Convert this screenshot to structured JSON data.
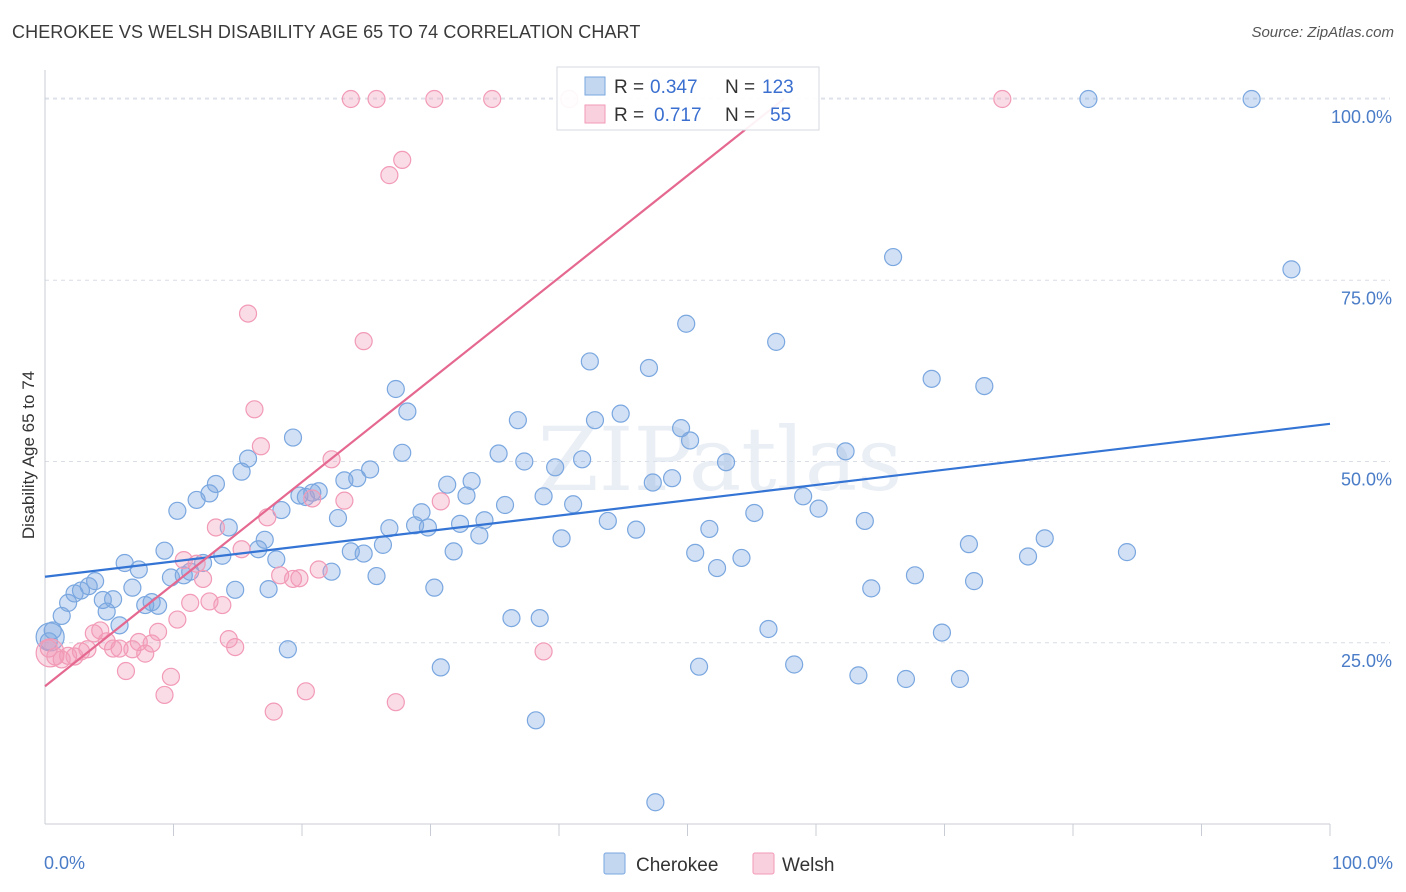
{
  "title": "CHEROKEE VS WELSH DISABILITY AGE 65 TO 74 CORRELATION CHART",
  "source": "Source: ZipAtlas.com",
  "watermark": "ZIPatlas",
  "chart_data": {
    "type": "scatter",
    "ylabel": "Disability Age 65 to 74",
    "xlabel": "",
    "xlim": [
      0,
      100
    ],
    "ylim": [
      0,
      104
    ],
    "x_tick_labels": [
      "0.0%",
      "100.0%"
    ],
    "y_ticks": [
      25,
      50,
      75,
      100
    ],
    "y_tick_labels": [
      "25.0%",
      "50.0%",
      "75.0%",
      "100.0%"
    ],
    "grid": true,
    "legend_position": "top-center",
    "stats": [
      {
        "r_label": "R =",
        "r_value": "0.347",
        "n_label": "N =",
        "n_value": "123"
      },
      {
        "r_label": "R =",
        "r_value": "0.717",
        "n_label": "N =",
        "n_value": "55"
      }
    ],
    "series": [
      {
        "name": "Cherokee",
        "color": "#7aa7e0",
        "line_color": "#3474d4",
        "trend": [
          [
            0,
            34.1
          ],
          [
            100,
            55.2
          ]
        ],
        "points": [
          [
            0.3,
            25.2
          ],
          [
            0.6,
            26.7
          ],
          [
            1.3,
            28.7
          ],
          [
            1.8,
            30.5
          ],
          [
            2.3,
            31.8
          ],
          [
            2.8,
            32.2
          ],
          [
            3.4,
            32.8
          ],
          [
            3.9,
            33.5
          ],
          [
            4.5,
            30.9
          ],
          [
            4.8,
            29.3
          ],
          [
            5.3,
            31
          ],
          [
            5.8,
            27.4
          ],
          [
            6.2,
            36
          ],
          [
            6.8,
            32.6
          ],
          [
            7.3,
            35.1
          ],
          [
            7.8,
            30.2
          ],
          [
            8.3,
            30.6
          ],
          [
            8.8,
            30.1
          ],
          [
            9.3,
            37.7
          ],
          [
            9.8,
            34
          ],
          [
            10.3,
            43.2
          ],
          [
            10.8,
            34.3
          ],
          [
            11.3,
            34.8
          ],
          [
            11.8,
            44.7
          ],
          [
            12.3,
            36
          ],
          [
            12.8,
            45.6
          ],
          [
            13.3,
            46.9
          ],
          [
            13.8,
            37
          ],
          [
            14.3,
            40.9
          ],
          [
            14.8,
            32.3
          ],
          [
            15.3,
            48.6
          ],
          [
            15.8,
            50.4
          ],
          [
            16.6,
            37.9
          ],
          [
            17.1,
            39.2
          ],
          [
            17.4,
            32.4
          ],
          [
            18,
            36.5
          ],
          [
            18.4,
            43.3
          ],
          [
            18.9,
            24.1
          ],
          [
            19.3,
            53.3
          ],
          [
            19.8,
            45.3
          ],
          [
            20.3,
            45.1
          ],
          [
            20.8,
            45.7
          ],
          [
            21.3,
            45.9
          ],
          [
            22.3,
            34.8
          ],
          [
            22.8,
            42.2
          ],
          [
            23.3,
            47.4
          ],
          [
            23.8,
            37.6
          ],
          [
            24.3,
            47.7
          ],
          [
            24.8,
            37.3
          ],
          [
            25.3,
            48.9
          ],
          [
            25.8,
            34.2
          ],
          [
            26.3,
            38.5
          ],
          [
            26.8,
            40.8
          ],
          [
            27.3,
            60
          ],
          [
            27.8,
            51.2
          ],
          [
            28.2,
            56.9
          ],
          [
            28.8,
            41.2
          ],
          [
            29.3,
            43
          ],
          [
            29.8,
            40.9
          ],
          [
            30.3,
            32.6
          ],
          [
            30.8,
            21.6
          ],
          [
            31.3,
            46.8
          ],
          [
            31.8,
            37.6
          ],
          [
            32.3,
            41.4
          ],
          [
            32.8,
            45.3
          ],
          [
            33.2,
            47.3
          ],
          [
            33.8,
            39.8
          ],
          [
            34.2,
            41.9
          ],
          [
            35.3,
            51.1
          ],
          [
            35.8,
            44
          ],
          [
            36.3,
            28.4
          ],
          [
            36.8,
            55.7
          ],
          [
            37.3,
            50
          ],
          [
            38.2,
            14.3
          ],
          [
            38.5,
            28.4
          ],
          [
            38.8,
            45.2
          ],
          [
            39.7,
            49.2
          ],
          [
            40.2,
            39.4
          ],
          [
            41.1,
            44.1
          ],
          [
            41.8,
            50.3
          ],
          [
            42.4,
            63.8
          ],
          [
            42.8,
            55.7
          ],
          [
            43.8,
            41.8
          ],
          [
            44.8,
            56.6
          ],
          [
            46,
            40.6
          ],
          [
            47,
            62.9
          ],
          [
            47.3,
            47.1
          ],
          [
            48.8,
            47.7
          ],
          [
            49.5,
            54.6
          ],
          [
            49.9,
            69
          ],
          [
            50.2,
            52.9
          ],
          [
            50.6,
            37.4
          ],
          [
            50.9,
            21.7
          ],
          [
            51.7,
            40.7
          ],
          [
            52.3,
            35.3
          ],
          [
            53,
            49.9
          ],
          [
            54.2,
            36.7
          ],
          [
            55.2,
            42.9
          ],
          [
            56.3,
            26.9
          ],
          [
            56.9,
            66.5
          ],
          [
            58.3,
            22
          ],
          [
            59,
            45.2
          ],
          [
            60.2,
            43.5
          ],
          [
            62.3,
            51.4
          ],
          [
            63.3,
            20.5
          ],
          [
            63.8,
            41.8
          ],
          [
            64.3,
            32.5
          ],
          [
            66,
            78.2
          ],
          [
            67,
            20
          ],
          [
            67.7,
            34.3
          ],
          [
            69,
            61.4
          ],
          [
            69.8,
            26.4
          ],
          [
            71.2,
            20
          ],
          [
            71.9,
            38.6
          ],
          [
            72.3,
            33.5
          ],
          [
            73.1,
            60.4
          ],
          [
            76.5,
            36.9
          ],
          [
            77.8,
            39.4
          ],
          [
            81.2,
            100
          ],
          [
            84.2,
            37.5
          ],
          [
            93.9,
            100
          ],
          [
            97,
            76.5
          ],
          [
            47.5,
            3
          ]
        ],
        "large_points": [
          [
            0.4,
            25.8
          ]
        ]
      },
      {
        "name": "Welsh",
        "color": "#f29ab6",
        "line_color": "#e56890",
        "trend": [
          [
            0,
            19
          ],
          [
            57.5,
            100
          ]
        ],
        "points": [
          [
            0.3,
            24.2
          ],
          [
            0.8,
            23.1
          ],
          [
            1.3,
            22.7
          ],
          [
            1.8,
            23.2
          ],
          [
            2.3,
            23.1
          ],
          [
            2.8,
            23.8
          ],
          [
            3.3,
            24.1
          ],
          [
            3.8,
            26.3
          ],
          [
            4.3,
            26.7
          ],
          [
            4.8,
            25.2
          ],
          [
            5.3,
            24.2
          ],
          [
            5.8,
            24.2
          ],
          [
            6.3,
            21.1
          ],
          [
            6.8,
            24.1
          ],
          [
            7.3,
            25.1
          ],
          [
            7.8,
            23.5
          ],
          [
            8.3,
            24.9
          ],
          [
            8.8,
            26.5
          ],
          [
            9.3,
            17.8
          ],
          [
            9.8,
            20.3
          ],
          [
            10.3,
            28.2
          ],
          [
            10.8,
            36.4
          ],
          [
            11.3,
            30.5
          ],
          [
            11.8,
            35.9
          ],
          [
            12.3,
            33.8
          ],
          [
            12.8,
            30.7
          ],
          [
            13.3,
            40.9
          ],
          [
            13.8,
            30.2
          ],
          [
            14.3,
            25.5
          ],
          [
            14.8,
            24.4
          ],
          [
            15.3,
            37.9
          ],
          [
            15.8,
            70.4
          ],
          [
            16.3,
            57.2
          ],
          [
            16.8,
            52.1
          ],
          [
            17.3,
            42.3
          ],
          [
            17.8,
            15.5
          ],
          [
            18.3,
            34.3
          ],
          [
            19.3,
            33.8
          ],
          [
            19.8,
            33.9
          ],
          [
            20.3,
            18.3
          ],
          [
            20.8,
            44.9
          ],
          [
            21.3,
            35.1
          ],
          [
            22.3,
            50.3
          ],
          [
            23.3,
            44.6
          ],
          [
            23.8,
            100
          ],
          [
            24.8,
            66.6
          ],
          [
            25.8,
            100
          ],
          [
            26.8,
            89.5
          ],
          [
            27.3,
            16.8
          ],
          [
            27.8,
            91.6
          ],
          [
            30.3,
            100
          ],
          [
            30.8,
            44.5
          ],
          [
            34.8,
            100
          ],
          [
            38.8,
            23.8
          ],
          [
            40.8,
            100
          ],
          [
            74.5,
            100
          ]
        ],
        "large_points": [
          [
            0.4,
            23.6
          ]
        ]
      }
    ]
  }
}
